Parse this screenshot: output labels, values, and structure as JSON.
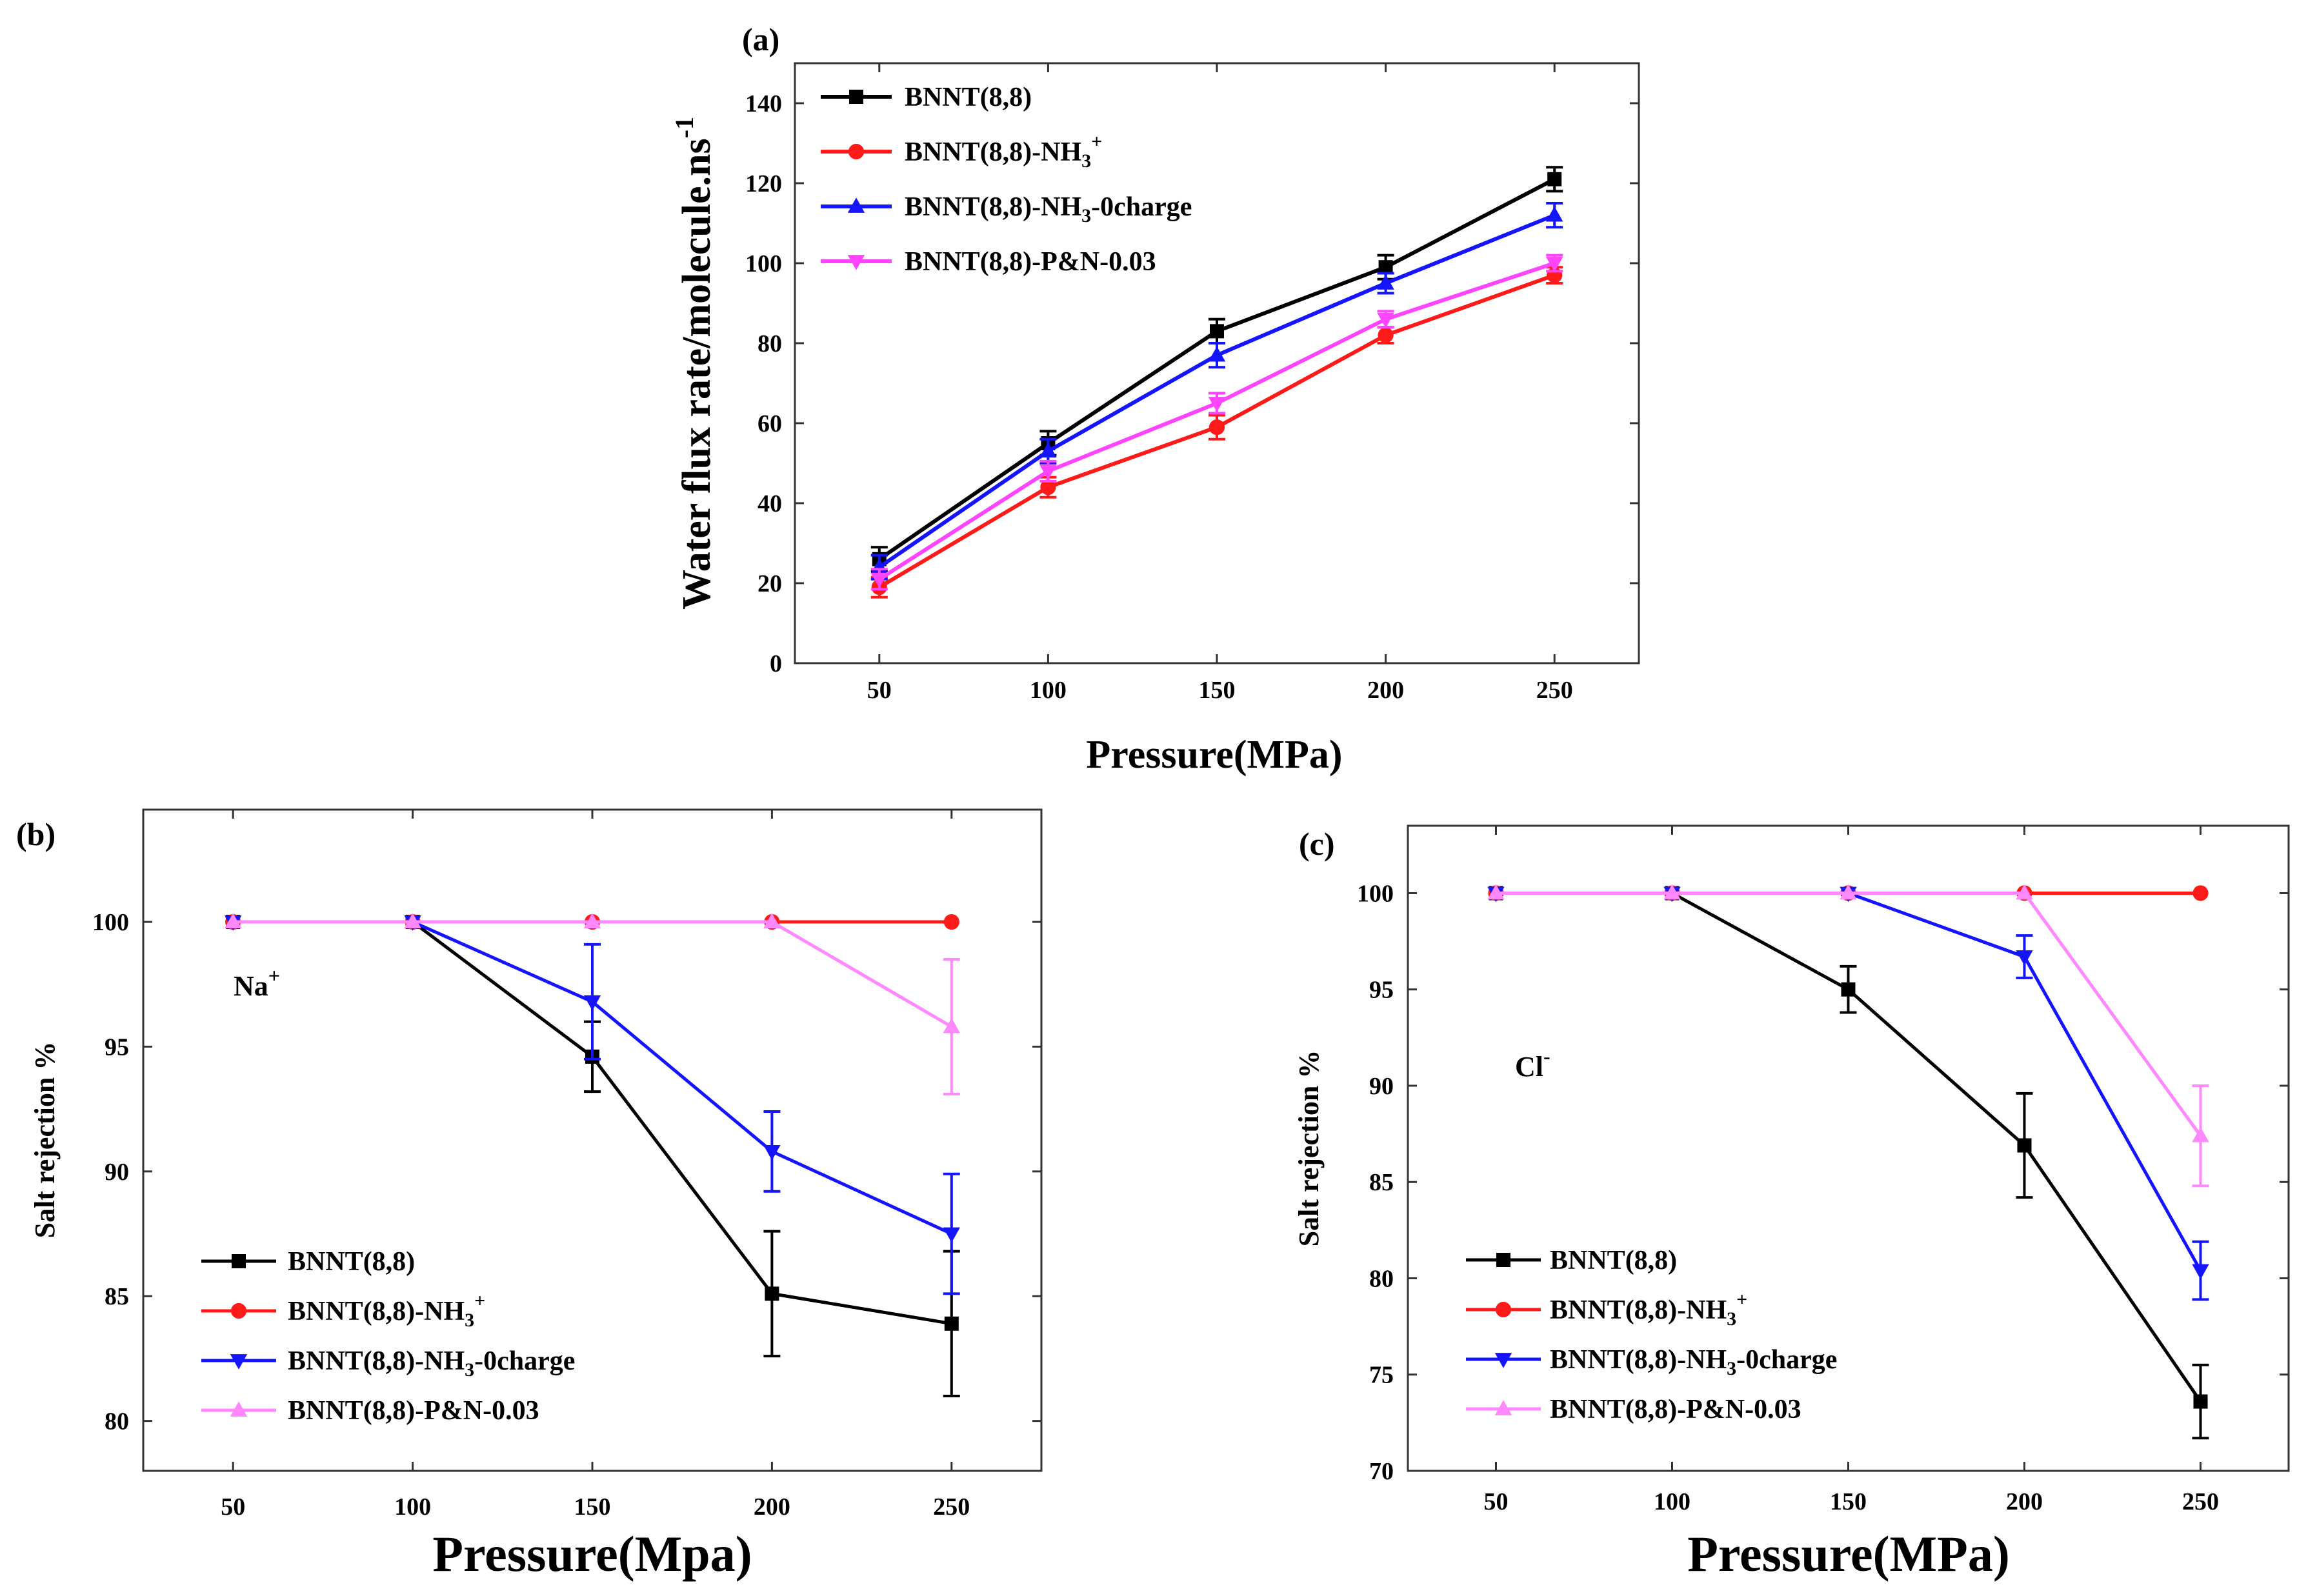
{
  "colors": {
    "BNNT(8,8)": "#000000",
    "BNNT(8,8)-NH3+": "#ff1a1a",
    "BNNT(8,8)-NH3-0charge": "#1414ff",
    "BNNT(8,8)-P&N-0.03": "#ff44ff",
    "BNNT(8,8)-P&N-0.03-light": "#ff88ff"
  },
  "chart_data": [
    {
      "panel": "(a)",
      "type": "line",
      "title": "",
      "xlabel": "Pressure(MPa)",
      "ylabel": "Water flux rate/molecule.ns",
      "ylabel_sup": "-1",
      "xlim": [
        25,
        275
      ],
      "ylim": [
        0,
        150
      ],
      "xticks": [
        "50",
        "100",
        "150",
        "200",
        "250"
      ],
      "yticks": [
        "0",
        "20",
        "40",
        "60",
        "80",
        "100",
        "120",
        "140"
      ],
      "legend_position": "top-left",
      "x": [
        50,
        100,
        150,
        200,
        250
      ],
      "series": [
        {
          "name": "BNNT(8,8)",
          "label_main": "BNNT(8,8)",
          "label_sub": "",
          "label_sup": "",
          "label_tail": "",
          "marker": "square",
          "color_key": "BNNT(8,8)",
          "values": [
            26,
            55,
            83,
            99,
            121
          ],
          "errors": [
            3,
            3,
            3,
            3,
            3
          ]
        },
        {
          "name": "BNNT(8,8)-NH3+",
          "label_main": "BNNT(8,8)-NH",
          "label_sub": "3",
          "label_sup": "+",
          "label_tail": "",
          "marker": "circle",
          "color_key": "BNNT(8,8)-NH3+",
          "values": [
            19,
            44,
            59,
            82,
            97
          ],
          "errors": [
            2.5,
            2.5,
            3,
            2,
            2
          ]
        },
        {
          "name": "BNNT(8,8)-NH3-0charge",
          "label_main": "BNNT(8,8)-NH",
          "label_sub": "3",
          "label_sup": "",
          "label_tail": "-0charge",
          "marker": "triangle-up",
          "color_key": "BNNT(8,8)-NH3-0charge",
          "values": [
            24,
            53,
            77,
            95,
            112
          ],
          "errors": [
            3,
            3,
            3,
            2.5,
            3
          ]
        },
        {
          "name": "BNNT(8,8)-P&N-0.03",
          "label_main": "BNNT(8,8)-P&N-0.03",
          "label_sub": "",
          "label_sup": "",
          "label_tail": "",
          "marker": "triangle-down",
          "color_key": "BNNT(8,8)-P&N-0.03",
          "values": [
            21,
            48,
            65,
            86,
            100
          ],
          "errors": [
            2.5,
            2.5,
            2.5,
            2,
            2
          ]
        }
      ]
    },
    {
      "panel": "(b)",
      "type": "line",
      "title": "",
      "annotation": "Na",
      "annotation_sup": "+",
      "xlabel": "Pressure(Mpa)",
      "ylabel": "Salt rejection %",
      "xlim": [
        25,
        275
      ],
      "ylim": [
        78,
        104.5
      ],
      "xticks": [
        "50",
        "100",
        "150",
        "200",
        "250"
      ],
      "yticks": [
        "80",
        "85",
        "90",
        "95",
        "100"
      ],
      "legend_position": "bottom-left",
      "x": [
        50,
        100,
        150,
        200,
        250
      ],
      "series": [
        {
          "name": "BNNT(8,8)",
          "label_main": "BNNT(8,8)",
          "label_sub": "",
          "label_sup": "",
          "label_tail": "",
          "marker": "square",
          "color_key": "BNNT(8,8)",
          "values": [
            100,
            100,
            94.6,
            85.1,
            83.9
          ],
          "errors": [
            0,
            0,
            1.4,
            2.5,
            2.9
          ]
        },
        {
          "name": "BNNT(8,8)-NH3+",
          "label_main": "BNNT(8,8)-NH",
          "label_sub": "3",
          "label_sup": "+",
          "label_tail": "",
          "marker": "circle",
          "color_key": "BNNT(8,8)-NH3+",
          "values": [
            100,
            100,
            100,
            100,
            100
          ],
          "errors": [
            0,
            0,
            0,
            0,
            0
          ]
        },
        {
          "name": "BNNT(8,8)-NH3-0charge",
          "label_main": "BNNT(8,8)-NH",
          "label_sub": "3",
          "label_sup": "",
          "label_tail": "-0charge",
          "marker": "triangle-down",
          "color_key": "BNNT(8,8)-NH3-0charge",
          "values": [
            100,
            100,
            96.8,
            90.8,
            87.5
          ],
          "errors": [
            0,
            0,
            2.3,
            1.6,
            2.4
          ]
        },
        {
          "name": "BNNT(8,8)-P&N-0.03",
          "label_main": "BNNT(8,8)-P&N-0.03",
          "label_sub": "",
          "label_sup": "",
          "label_tail": "",
          "marker": "triangle-up",
          "color_key": "BNNT(8,8)-P&N-0.03-light",
          "values": [
            100,
            100,
            100,
            100,
            95.8
          ],
          "errors": [
            0,
            0,
            0,
            0,
            2.7
          ]
        }
      ]
    },
    {
      "panel": "(c)",
      "type": "line",
      "title": "",
      "annotation": "Cl",
      "annotation_sup": "-",
      "xlabel": "Pressure(MPa)",
      "ylabel": "Salt rejection %",
      "xlim": [
        25,
        275
      ],
      "ylim": [
        70,
        103.5
      ],
      "xticks": [
        "50",
        "100",
        "150",
        "200",
        "250"
      ],
      "yticks": [
        "70",
        "75",
        "80",
        "85",
        "90",
        "95",
        "100"
      ],
      "legend_position": "bottom-left",
      "x": [
        50,
        100,
        150,
        200,
        250
      ],
      "series": [
        {
          "name": "BNNT(8,8)",
          "label_main": "BNNT(8,8)",
          "label_sub": "",
          "label_sup": "",
          "label_tail": "",
          "marker": "square",
          "color_key": "BNNT(8,8)",
          "values": [
            100,
            100,
            95,
            86.9,
            73.6
          ],
          "errors": [
            0,
            0,
            1.2,
            2.7,
            1.9
          ]
        },
        {
          "name": "BNNT(8,8)-NH3+",
          "label_main": "BNNT(8,8)-NH",
          "label_sub": "3",
          "label_sup": "+",
          "label_tail": "",
          "marker": "circle",
          "color_key": "BNNT(8,8)-NH3+",
          "values": [
            100,
            100,
            100,
            100,
            100
          ],
          "errors": [
            0,
            0,
            0,
            0,
            0
          ]
        },
        {
          "name": "BNNT(8,8)-NH3-0charge",
          "label_main": "BNNT(8,8)-NH",
          "label_sub": "3",
          "label_sup": "",
          "label_tail": "-0charge",
          "marker": "triangle-down",
          "color_key": "BNNT(8,8)-NH3-0charge",
          "values": [
            100,
            100,
            100,
            96.7,
            80.4
          ],
          "errors": [
            0,
            0,
            0,
            1.1,
            1.5
          ]
        },
        {
          "name": "BNNT(8,8)-P&N-0.03",
          "label_main": "BNNT(8,8)-P&N-0.03",
          "label_sub": "",
          "label_sup": "",
          "label_tail": "",
          "marker": "triangle-up",
          "color_key": "BNNT(8,8)-P&N-0.03-light",
          "values": [
            100,
            100,
            100,
            100,
            87.4
          ],
          "errors": [
            0,
            0,
            0,
            0,
            2.6
          ]
        }
      ]
    }
  ]
}
